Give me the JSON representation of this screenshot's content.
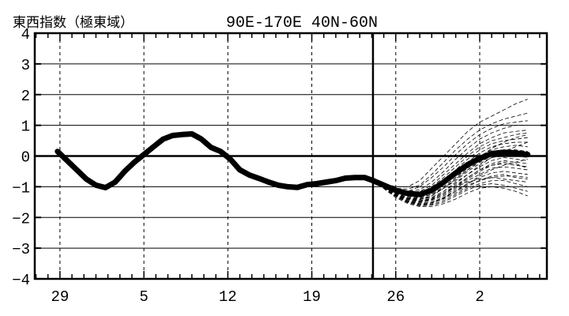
{
  "chart_data": {
    "type": "line",
    "title": "東西指数（極東域）",
    "subtitle": "90E-170E  40N-60N",
    "xlabel": "",
    "ylabel": "",
    "ylim": [
      -4,
      4
    ],
    "yticks": [
      "4",
      "3",
      "2",
      "1",
      "0",
      "−1",
      "−2",
      "−3",
      "−4"
    ],
    "xticks": [
      {
        "day": 29,
        "label": "29"
      },
      {
        "day": 36,
        "label": "5"
      },
      {
        "day": 43,
        "label": "12"
      },
      {
        "day": 50,
        "label": "19"
      },
      {
        "day": 57,
        "label": "26"
      },
      {
        "day": 64,
        "label": "2"
      }
    ],
    "xlim": [
      26.9,
      69.6
    ],
    "forecast_start_day": 55.1,
    "grid": true,
    "colors": {
      "line": "#000000",
      "grid": "#000000",
      "background": "#ffffff"
    },
    "series": [
      {
        "kind": "analysis",
        "x": [
          28.8,
          29.6,
          30.4,
          31.2,
          32.0,
          32.8,
          33.6,
          34.4,
          35.2,
          36.0,
          36.8,
          37.6,
          38.4,
          39.2,
          40.0,
          40.8,
          41.6,
          42.4,
          43.2,
          44.0,
          44.8,
          45.6,
          46.4,
          47.2,
          48.0,
          48.8,
          49.6,
          50.4,
          51.2,
          52.0,
          52.8,
          53.6,
          54.4,
          55.1
        ],
        "y": [
          0.15,
          -0.15,
          -0.45,
          -0.75,
          -0.95,
          -1.03,
          -0.85,
          -0.5,
          -0.2,
          0.05,
          0.3,
          0.55,
          0.67,
          0.7,
          0.72,
          0.55,
          0.28,
          0.15,
          -0.1,
          -0.45,
          -0.62,
          -0.73,
          -0.85,
          -0.95,
          -1.0,
          -1.02,
          -0.93,
          -0.9,
          -0.85,
          -0.8,
          -0.72,
          -0.7,
          -0.7,
          -0.8
        ]
      },
      {
        "kind": "ensemble_mean",
        "x": [
          55.1,
          56.0,
          57.0,
          58.0,
          59.0,
          60.0,
          61.0,
          62.0,
          63.0,
          64.0,
          65.0,
          66.0,
          67.0,
          68.0
        ],
        "y": [
          -0.8,
          -0.95,
          -1.12,
          -1.22,
          -1.25,
          -1.12,
          -0.85,
          -0.55,
          -0.28,
          -0.08,
          0.08,
          0.12,
          0.1,
          0.05
        ]
      }
    ],
    "ensemble": {
      "x": [
        55.1,
        56.0,
        57.0,
        58.0,
        59.0,
        60.0,
        61.0,
        62.0,
        63.0,
        64.0,
        65.0,
        66.0,
        67.0,
        68.0
      ],
      "members": [
        [
          -0.8,
          -0.9,
          -1.0,
          -1.0,
          -0.8,
          -0.4,
          0.0,
          0.4,
          0.8,
          1.1,
          1.3,
          1.5,
          1.7,
          1.85
        ],
        [
          -0.8,
          -0.92,
          -1.05,
          -1.08,
          -0.95,
          -0.6,
          -0.2,
          0.2,
          0.55,
          0.85,
          1.05,
          1.2,
          1.3,
          1.4
        ],
        [
          -0.8,
          -0.95,
          -1.1,
          -1.15,
          -1.0,
          -0.7,
          -0.35,
          0.05,
          0.4,
          0.7,
          0.9,
          1.05,
          1.1,
          1.15
        ],
        [
          -0.8,
          -0.94,
          -1.08,
          -1.15,
          -1.1,
          -0.85,
          -0.5,
          -0.1,
          0.25,
          0.55,
          0.75,
          0.9,
          1.0,
          1.0
        ],
        [
          -0.8,
          -0.96,
          -1.12,
          -1.2,
          -1.15,
          -0.95,
          -0.6,
          -0.25,
          0.1,
          0.4,
          0.6,
          0.75,
          0.8,
          0.85
        ],
        [
          -0.8,
          -0.97,
          -1.15,
          -1.25,
          -1.2,
          -1.0,
          -0.7,
          -0.35,
          0.0,
          0.3,
          0.5,
          0.6,
          0.7,
          0.75
        ],
        [
          -0.8,
          -0.95,
          -1.12,
          -1.22,
          -1.25,
          -1.1,
          -0.8,
          -0.45,
          -0.1,
          0.2,
          0.4,
          0.5,
          0.55,
          0.6
        ],
        [
          -0.8,
          -0.98,
          -1.18,
          -1.3,
          -1.3,
          -1.15,
          -0.85,
          -0.55,
          -0.2,
          0.1,
          0.3,
          0.4,
          0.45,
          0.45
        ],
        [
          -0.8,
          -0.96,
          -1.15,
          -1.28,
          -1.32,
          -1.2,
          -0.95,
          -0.6,
          -0.3,
          0.0,
          0.2,
          0.3,
          0.35,
          0.3
        ],
        [
          -0.8,
          -0.97,
          -1.16,
          -1.3,
          -1.35,
          -1.25,
          -1.0,
          -0.7,
          -0.4,
          -0.1,
          0.1,
          0.2,
          0.2,
          0.15
        ],
        [
          -0.8,
          -0.98,
          -1.18,
          -1.32,
          -1.38,
          -1.3,
          -1.05,
          -0.75,
          -0.45,
          -0.2,
          0.0,
          0.1,
          0.1,
          0.05
        ],
        [
          -0.8,
          -0.97,
          -1.17,
          -1.3,
          -1.35,
          -1.25,
          -1.05,
          -0.8,
          -0.5,
          -0.25,
          -0.05,
          0.0,
          0.0,
          -0.05
        ],
        [
          -0.8,
          -0.99,
          -1.2,
          -1.35,
          -1.4,
          -1.35,
          -1.15,
          -0.85,
          -0.6,
          -0.35,
          -0.15,
          -0.05,
          -0.1,
          -0.15
        ],
        [
          -0.8,
          -1.0,
          -1.22,
          -1.38,
          -1.45,
          -1.4,
          -1.2,
          -0.95,
          -0.7,
          -0.45,
          -0.25,
          -0.15,
          -0.2,
          -0.25
        ],
        [
          -0.8,
          -1.0,
          -1.24,
          -1.4,
          -1.48,
          -1.42,
          -1.25,
          -1.0,
          -0.75,
          -0.5,
          -0.3,
          -0.25,
          -0.3,
          -0.35
        ],
        [
          -0.8,
          -1.02,
          -1.26,
          -1.42,
          -1.5,
          -1.45,
          -1.3,
          -1.05,
          -0.8,
          -0.6,
          -0.4,
          -0.35,
          -0.4,
          -0.45
        ],
        [
          -0.8,
          -1.02,
          -1.27,
          -1.45,
          -1.52,
          -1.5,
          -1.35,
          -1.1,
          -0.9,
          -0.7,
          -0.55,
          -0.5,
          -0.55,
          -0.6
        ],
        [
          -0.8,
          -1.03,
          -1.28,
          -1.46,
          -1.55,
          -1.52,
          -1.4,
          -1.2,
          -1.0,
          -0.8,
          -0.65,
          -0.6,
          -0.7,
          -0.75
        ],
        [
          -0.8,
          -1.04,
          -1.3,
          -1.5,
          -1.6,
          -1.58,
          -1.45,
          -1.25,
          -1.05,
          -0.9,
          -0.8,
          -0.8,
          -0.9,
          -1.0
        ],
        [
          -0.8,
          -1.05,
          -1.32,
          -1.52,
          -1.62,
          -1.6,
          -1.5,
          -1.3,
          -1.1,
          -0.95,
          -0.9,
          -0.95,
          -1.05,
          -1.15
        ],
        [
          -0.8,
          -1.06,
          -1.35,
          -1.55,
          -1.65,
          -1.65,
          -1.55,
          -1.4,
          -1.2,
          -1.05,
          -1.0,
          -1.05,
          -1.15,
          -1.3
        ],
        [
          -0.8,
          -1.03,
          -1.3,
          -1.5,
          -1.58,
          -1.55,
          -1.38,
          -1.15,
          -0.9,
          -0.65,
          -0.45,
          -0.3,
          -0.2,
          -0.1
        ],
        [
          -0.8,
          -0.99,
          -1.2,
          -1.36,
          -1.42,
          -1.35,
          -1.15,
          -0.9,
          -0.6,
          -0.3,
          -0.05,
          0.15,
          0.3,
          0.45
        ],
        [
          -0.8,
          -0.97,
          -1.16,
          -1.3,
          -1.34,
          -1.25,
          -1.0,
          -0.7,
          -0.35,
          -0.05,
          0.25,
          0.45,
          0.6,
          0.7
        ],
        [
          -0.8,
          -1.01,
          -1.24,
          -1.4,
          -1.46,
          -1.38,
          -1.2,
          -1.0,
          -0.85,
          -0.75,
          -0.7,
          -0.75,
          -0.8,
          -0.85
        ],
        [
          -0.8,
          -1.04,
          -1.3,
          -1.48,
          -1.56,
          -1.52,
          -1.35,
          -1.15,
          -0.95,
          -0.8,
          -0.7,
          -0.65,
          -0.65,
          -0.7
        ],
        [
          -0.8,
          -0.99,
          -1.22,
          -1.38,
          -1.42,
          -1.3,
          -1.05,
          -0.75,
          -0.45,
          -0.15,
          0.05,
          0.1,
          0.05,
          0.0
        ],
        [
          -0.8,
          -1.02,
          -1.26,
          -1.42,
          -1.48,
          -1.42,
          -1.25,
          -1.0,
          -0.7,
          -0.45,
          -0.3,
          -0.2,
          -0.25,
          -0.4
        ]
      ]
    }
  }
}
